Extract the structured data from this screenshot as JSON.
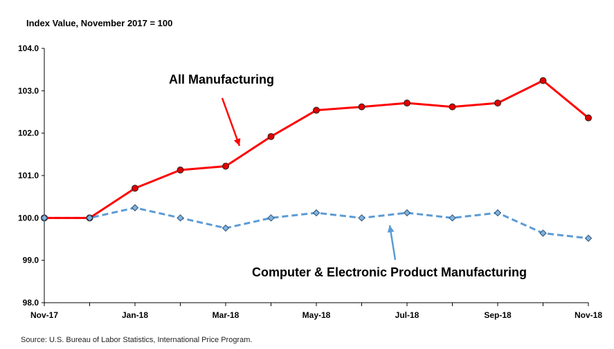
{
  "chart_data": {
    "type": "line",
    "ylabel": "Index Value, November 2017 = 100",
    "ylim": [
      98.0,
      104.0
    ],
    "yticks": [
      "98.0",
      "99.0",
      "100.0",
      "101.0",
      "102.0",
      "103.0",
      "104.0"
    ],
    "x": [
      "Nov-17",
      "Dec-17",
      "Jan-18",
      "Feb-18",
      "Mar-18",
      "Apr-18",
      "May-18",
      "Jun-18",
      "Jul-18",
      "Aug-18",
      "Sep-18",
      "Oct-18",
      "Nov-18"
    ],
    "xtick_labels": [
      "Nov-17",
      "",
      "Jan-18",
      "",
      "Mar-18",
      "",
      "May-18",
      "",
      "Jul-18",
      "",
      "Sep-18",
      "",
      "Nov-18"
    ],
    "series": [
      {
        "name": "All Manufacturing",
        "color": "#ff0000",
        "marker_color": "#e00000",
        "style": "solid",
        "marker": "circle",
        "values": [
          100.0,
          100.0,
          100.7,
          101.13,
          101.22,
          101.92,
          102.54,
          102.62,
          102.71,
          102.62,
          102.71,
          103.24,
          102.36
        ]
      },
      {
        "name": "Computer & Electronic Product Manufacturing",
        "color": "#5b9bd5",
        "marker_color": "#7fb2de",
        "style": "dashed",
        "marker": "diamond",
        "values": [
          100.0,
          100.0,
          100.24,
          100.0,
          99.76,
          100.0,
          100.12,
          100.0,
          100.12,
          100.0,
          100.12,
          99.64,
          99.52
        ]
      }
    ],
    "annotations": [
      {
        "text": "All Manufacturing",
        "arrow_color": "#ff0000"
      },
      {
        "text": "Computer & Electronic Product Manufacturing",
        "arrow_color": "#5b9bd5"
      }
    ],
    "grid": false,
    "source": "Source: U.S. Bureau of Labor Statistics, International Price Program."
  }
}
